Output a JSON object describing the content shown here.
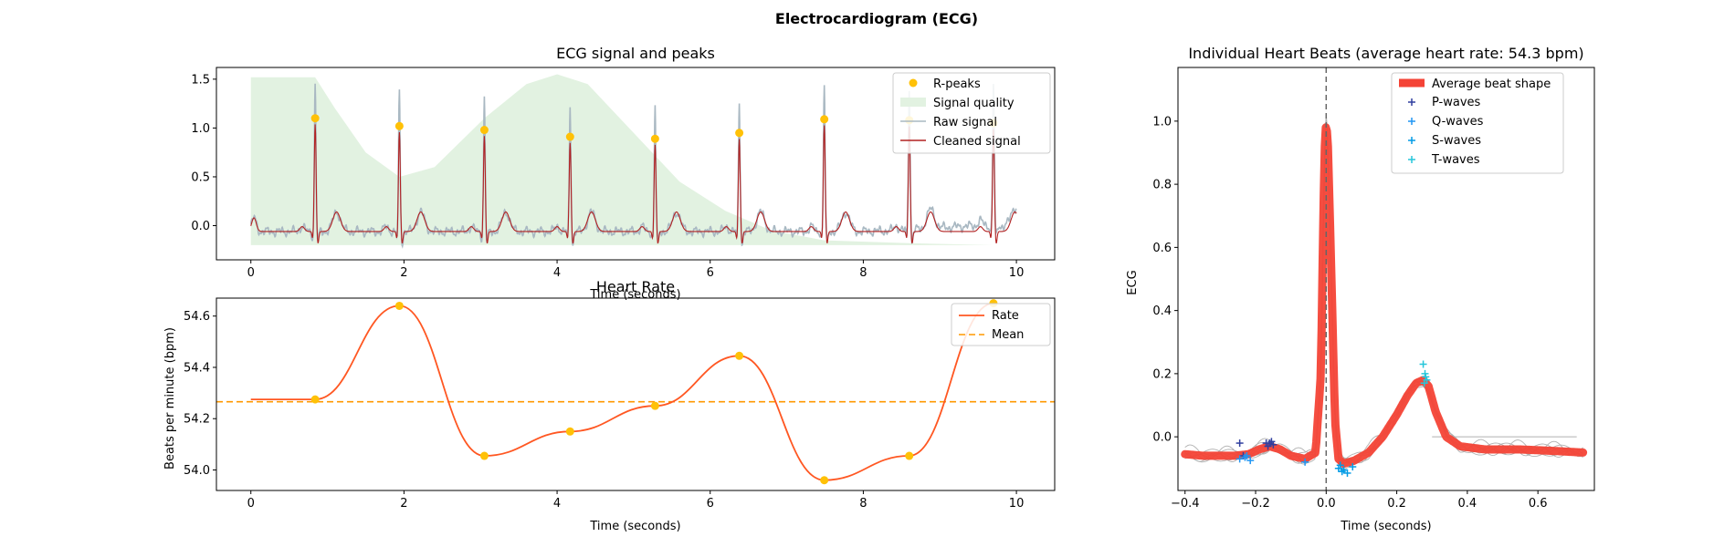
{
  "figure_title": "Electrocardiogram (ECG)",
  "colors": {
    "cleaned": "#b22222",
    "raw": "#a9b8c2",
    "quality": "#e2f2e1",
    "rpeaks": "#FFC107",
    "rate": "#FF5722",
    "mean": "#FF9800",
    "avg_beat": "#F44336",
    "p_wave": "#303F9F",
    "q_wave": "#2196F3",
    "s_wave": "#039BE5",
    "t_wave": "#26C6DA",
    "axes": "#000000"
  },
  "chart_data": [
    {
      "id": "ecg",
      "type": "line",
      "title": "ECG signal and peaks",
      "xlabel": "Time (seconds)",
      "ylabel": "",
      "xlim": [
        -0.45,
        10.5
      ],
      "ylim": [
        -0.35,
        1.62
      ],
      "xticks": [
        0,
        2,
        4,
        6,
        8,
        10
      ],
      "yticks": [
        0.0,
        0.5,
        1.0,
        1.5
      ],
      "ytick_labels": [
        "0.0",
        "0.5",
        "1.0",
        "1.5"
      ],
      "legend": [
        "R-peaks",
        "Signal quality",
        "Raw signal",
        "Cleaned signal"
      ],
      "legend_position": "top-right",
      "r_peaks": {
        "x": [
          0.84,
          1.94,
          3.05,
          4.17,
          5.28,
          6.38,
          7.49,
          8.6,
          9.7
        ],
        "y": [
          1.1,
          1.02,
          0.98,
          0.91,
          0.89,
          0.95,
          1.09,
          1.08,
          1.05
        ]
      },
      "quality": {
        "x": [
          0,
          0.84,
          1.1,
          1.5,
          1.94,
          2.4,
          3.05,
          3.6,
          4.0,
          4.4,
          5.0,
          5.6,
          6.2,
          6.8,
          7.49,
          8.6,
          9.7,
          10
        ],
        "y": [
          1.52,
          1.52,
          1.2,
          0.75,
          0.5,
          0.6,
          1.1,
          1.45,
          1.55,
          1.45,
          0.95,
          0.45,
          0.15,
          -0.05,
          -0.15,
          -0.18,
          -0.2,
          -0.2
        ]
      }
    },
    {
      "id": "rate",
      "type": "line",
      "title": "Heart Rate",
      "xlabel": "Time (seconds)",
      "ylabel": "Beats per minute (bpm)",
      "xlim": [
        -0.45,
        10.5
      ],
      "ylim": [
        53.92,
        54.67
      ],
      "xticks": [
        0,
        2,
        4,
        6,
        8,
        10
      ],
      "yticks": [
        54.0,
        54.2,
        54.4,
        54.6
      ],
      "ytick_labels": [
        "54.0",
        "54.2",
        "54.4",
        "54.6"
      ],
      "legend": [
        "Rate",
        "Mean"
      ],
      "legend_position": "top-right",
      "mean": 54.266,
      "points": {
        "x": [
          0.84,
          1.94,
          3.05,
          4.17,
          5.28,
          6.38,
          7.49,
          8.6,
          9.7
        ],
        "y": [
          54.275,
          54.64,
          54.055,
          54.15,
          54.25,
          54.445,
          53.96,
          54.055,
          54.65
        ]
      },
      "flat_start": 54.275
    },
    {
      "id": "beats",
      "type": "line",
      "title": "Individual Heart Beats (average heart rate: 54.3 bpm)",
      "xlabel": "Time (seconds)",
      "ylabel": "ECG",
      "xlim": [
        -0.42,
        0.76
      ],
      "ylim": [
        -0.17,
        1.17
      ],
      "xticks": [
        -0.4,
        -0.2,
        0.0,
        0.2,
        0.4,
        0.6
      ],
      "xtick_labels": [
        "−0.4",
        "−0.2",
        "0.0",
        "0.2",
        "0.4",
        "0.6"
      ],
      "yticks": [
        0.0,
        0.2,
        0.4,
        0.6,
        0.8,
        1.0
      ],
      "ytick_labels": [
        "0.0",
        "0.2",
        "0.4",
        "0.6",
        "0.8",
        "1.0"
      ],
      "legend": [
        "Average beat shape",
        "P-waves",
        "Q-waves",
        "S-waves",
        "T-waves"
      ],
      "legend_position": "top-right",
      "average_beat": {
        "x": [
          -0.4,
          -0.35,
          -0.3,
          -0.26,
          -0.22,
          -0.19,
          -0.16,
          -0.13,
          -0.1,
          -0.06,
          -0.03,
          -0.015,
          -0.005,
          0.0,
          0.005,
          0.015,
          0.025,
          0.035,
          0.05,
          0.08,
          0.12,
          0.16,
          0.2,
          0.23,
          0.255,
          0.275,
          0.29,
          0.31,
          0.34,
          0.38,
          0.45,
          0.55,
          0.65,
          0.73
        ],
        "y": [
          -0.055,
          -0.06,
          -0.06,
          -0.06,
          -0.055,
          -0.04,
          -0.03,
          -0.04,
          -0.06,
          -0.07,
          -0.05,
          0.2,
          0.9,
          1.0,
          0.92,
          0.5,
          0.05,
          -0.07,
          -0.085,
          -0.075,
          -0.05,
          0.0,
          0.07,
          0.13,
          0.17,
          0.18,
          0.16,
          0.08,
          0.0,
          -0.03,
          -0.04,
          -0.04,
          -0.045,
          -0.05
        ]
      },
      "p_waves": {
        "x": [
          -0.245,
          -0.17,
          -0.16,
          -0.15,
          -0.235,
          -0.155,
          -0.165
        ],
        "y": [
          -0.02,
          -0.02,
          -0.02,
          -0.025,
          -0.06,
          -0.015,
          -0.03
        ]
      },
      "q_waves": {
        "x": [
          -0.23,
          -0.215,
          -0.06,
          -0.245,
          -0.225
        ],
        "y": [
          -0.065,
          -0.075,
          -0.08,
          -0.07,
          -0.06
        ]
      },
      "s_waves": {
        "x": [
          0.035,
          0.04,
          0.045,
          0.06,
          0.075,
          0.05
        ],
        "y": [
          -0.1,
          -0.09,
          -0.11,
          -0.115,
          -0.095,
          -0.105
        ]
      },
      "t_waves": {
        "x": [
          0.275,
          0.28,
          0.285,
          0.278,
          0.282
        ],
        "y": [
          0.23,
          0.2,
          0.18,
          0.17,
          0.19
        ]
      }
    }
  ]
}
